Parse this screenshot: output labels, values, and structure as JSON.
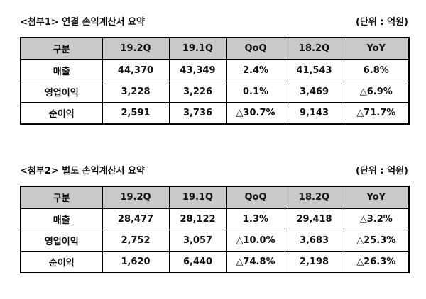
{
  "tables": [
    {
      "title": "<첨부1> 연결 손익계산서 요약",
      "unit": "(단위 : 억원)",
      "header": [
        "구분",
        "19.2Q",
        "19.1Q",
        "QoQ",
        "18.2Q",
        "YoY"
      ],
      "rows": [
        [
          "매출",
          "44,370",
          "43,349",
          "2.4%",
          "41,543",
          "6.8%"
        ],
        [
          "영업이익",
          "3,228",
          "3,226",
          "0.1%",
          "3,469",
          "△6.9%"
        ],
        [
          "순이익",
          "2,591",
          "3,736",
          "△30.7%",
          "9,143",
          "△71.7%"
        ]
      ]
    },
    {
      "title": "<첨부2> 별도 손익계산서 요약",
      "unit": "(단위 : 억원)",
      "header": [
        "구분",
        "19.2Q",
        "19.1Q",
        "QoQ",
        "18.2Q",
        "YoY"
      ],
      "rows": [
        [
          "매출",
          "28,477",
          "28,122",
          "1.3%",
          "29,418",
          "△3.2%"
        ],
        [
          "영업이익",
          "2,752",
          "3,057",
          "△10.0%",
          "3,683",
          "△25.3%"
        ],
        [
          "순이익",
          "1,620",
          "6,440",
          "△74.8%",
          "2,198",
          "△26.3%"
        ]
      ]
    }
  ]
}
